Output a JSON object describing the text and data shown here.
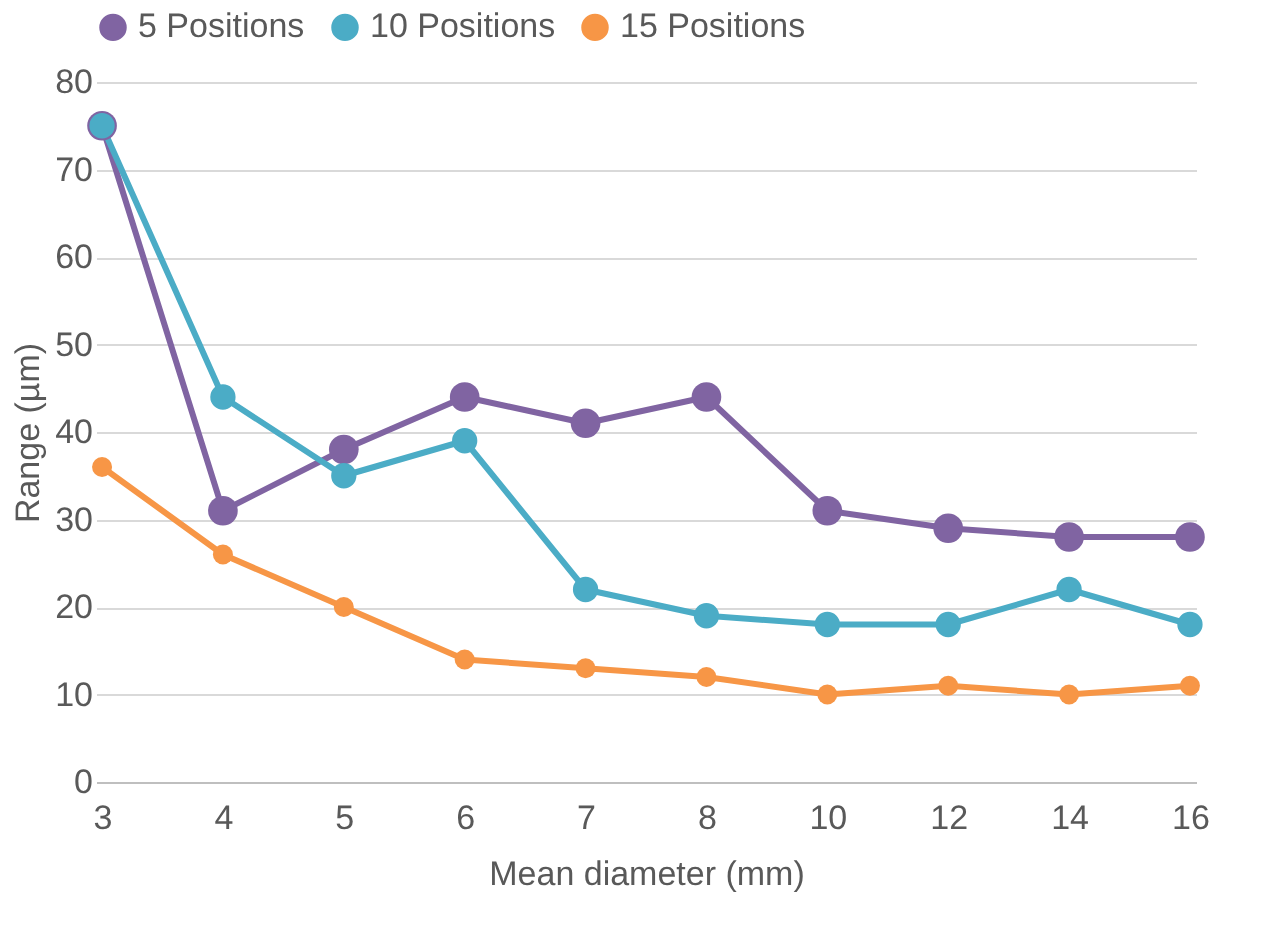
{
  "chart_data": {
    "type": "line",
    "xlabel": "Mean diameter (mm)",
    "ylabel": "Range (µm)",
    "categories": [
      "3",
      "4",
      "5",
      "6",
      "7",
      "8",
      "10",
      "12",
      "14",
      "16"
    ],
    "series": [
      {
        "name": "5 Positions",
        "color": "#8064a2",
        "values": [
          75,
          31,
          38,
          44,
          41,
          44,
          31,
          29,
          28,
          28
        ]
      },
      {
        "name": "10 Positions",
        "color": "#4bacc6",
        "values": [
          75,
          44,
          35,
          39,
          22,
          19,
          18,
          18,
          22,
          18
        ]
      },
      {
        "name": "15 Positions",
        "color": "#f79646",
        "values": [
          36,
          26,
          20,
          14,
          13,
          12,
          10,
          11,
          10,
          11
        ]
      }
    ],
    "ylim": [
      0,
      80
    ],
    "yticks": [
      0,
      10,
      20,
      30,
      40,
      50,
      60,
      70,
      80
    ],
    "grid": "y",
    "legend": "top",
    "marker": "circle",
    "line_style": "solid"
  }
}
